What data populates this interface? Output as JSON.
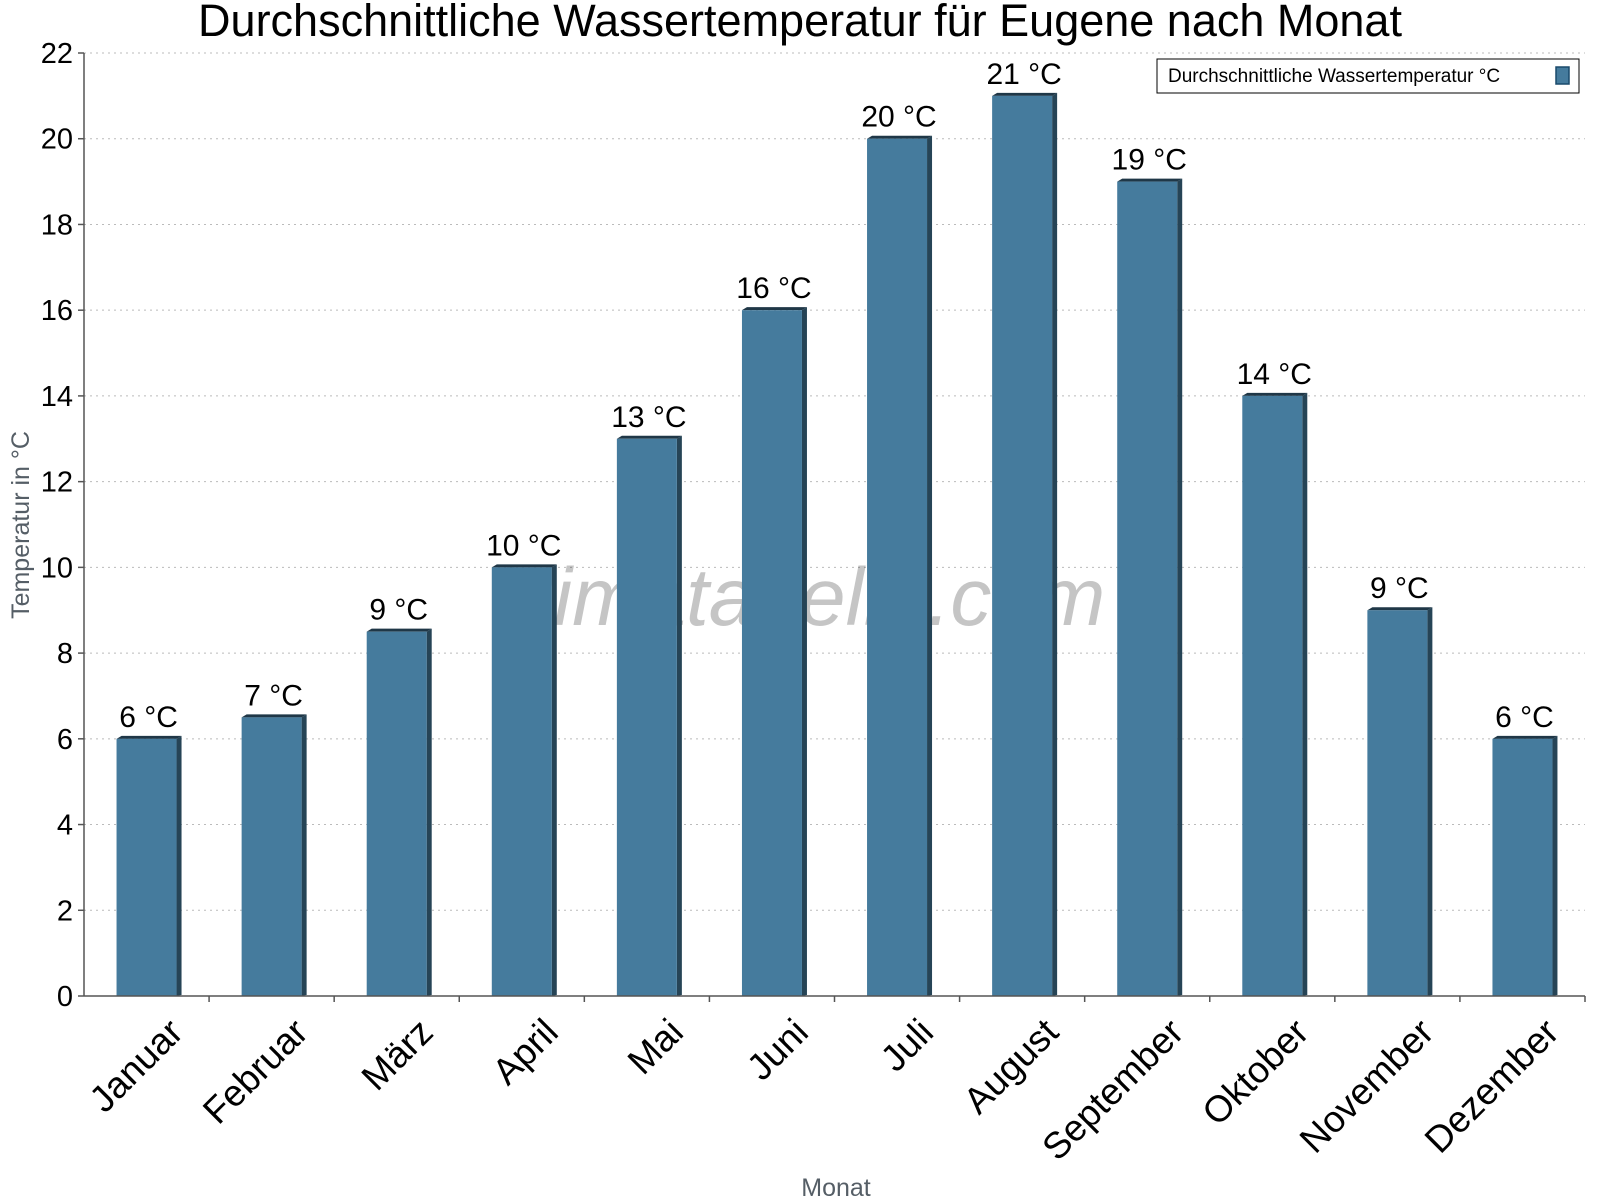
{
  "chart_data": {
    "type": "bar",
    "title": "Durchschnittliche Wassertemperatur für Eugene nach Monat",
    "xlabel": "Monat",
    "ylabel": "Temperatur in °C",
    "ylim": [
      0,
      22
    ],
    "yticks": [
      0,
      2,
      4,
      6,
      8,
      10,
      12,
      14,
      16,
      18,
      20,
      22
    ],
    "grid": "horizontal dotted",
    "legend_position": "top-right",
    "categories": [
      "Januar",
      "Februar",
      "März",
      "April",
      "Mai",
      "Juni",
      "Juli",
      "August",
      "September",
      "Oktober",
      "November",
      "Dezember"
    ],
    "series": [
      {
        "name": "Durchschnittliche Wassertemperatur °C",
        "color": "#457b9d",
        "values": [
          6,
          6.5,
          8.5,
          10,
          13,
          16,
          20,
          21,
          19,
          14,
          9,
          6
        ],
        "data_labels": [
          "6 °C",
          "7 °C",
          "9 °C",
          "10 °C",
          "13 °C",
          "16 °C",
          "20 °C",
          "21 °C",
          "19 °C",
          "14 °C",
          "9 °C",
          "6 °C"
        ]
      }
    ],
    "watermark": "klimatabelle.com"
  }
}
